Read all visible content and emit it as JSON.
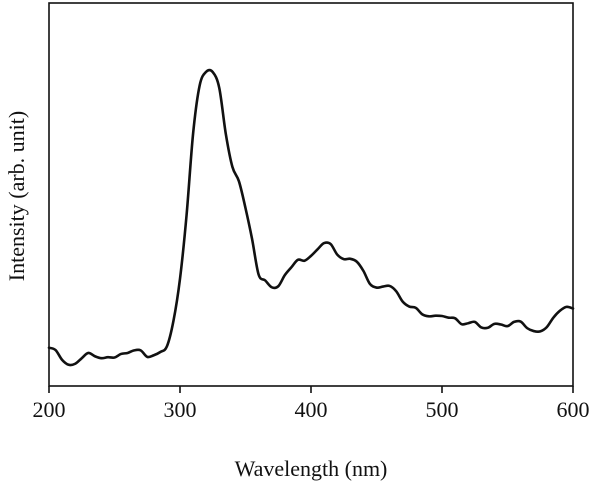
{
  "chart_data": {
    "type": "line",
    "xlabel": "Wavelength (nm)",
    "ylabel": "Intensity (arb. unit)",
    "xlim": [
      200,
      600
    ],
    "ylim": [
      0,
      1
    ],
    "x_ticks": [
      200,
      300,
      400,
      500,
      600
    ],
    "x_tick_labels": [
      "200",
      "300",
      "400",
      "500",
      "600"
    ],
    "y_ticks_labeled": false,
    "grid": false,
    "legend": "none",
    "colors": {
      "line": "#111111",
      "axis": "#111111"
    },
    "series": [
      {
        "x": [
          200,
          205,
          210,
          215,
          220,
          225,
          230,
          235,
          240,
          245,
          250,
          255,
          260,
          265,
          270,
          275,
          280,
          285,
          290,
          295,
          300,
          305,
          310,
          315,
          320,
          325,
          330,
          335,
          340,
          345,
          350,
          355,
          360,
          365,
          370,
          375,
          380,
          385,
          390,
          395,
          400,
          405,
          410,
          415,
          420,
          425,
          430,
          435,
          440,
          445,
          450,
          455,
          460,
          465,
          470,
          475,
          480,
          485,
          490,
          495,
          500,
          505,
          510,
          515,
          520,
          525,
          530,
          535,
          540,
          545,
          550,
          555,
          560,
          565,
          570,
          575,
          580,
          585,
          590,
          595,
          600
        ],
        "y": [
          0.117,
          0.11,
          0.08,
          0.065,
          0.068,
          0.085,
          0.101,
          0.091,
          0.085,
          0.088,
          0.087,
          0.098,
          0.101,
          0.109,
          0.109,
          0.089,
          0.094,
          0.104,
          0.121,
          0.199,
          0.328,
          0.522,
          0.772,
          0.919,
          0.961,
          0.96,
          0.911,
          0.77,
          0.67,
          0.626,
          0.544,
          0.45,
          0.341,
          0.323,
          0.302,
          0.305,
          0.339,
          0.363,
          0.386,
          0.383,
          0.398,
          0.418,
          0.437,
          0.434,
          0.402,
          0.388,
          0.389,
          0.38,
          0.352,
          0.312,
          0.301,
          0.304,
          0.306,
          0.29,
          0.258,
          0.243,
          0.239,
          0.219,
          0.213,
          0.215,
          0.214,
          0.209,
          0.207,
          0.189,
          0.192,
          0.196,
          0.179,
          0.178,
          0.19,
          0.188,
          0.183,
          0.196,
          0.197,
          0.177,
          0.168,
          0.167,
          0.18,
          0.209,
          0.23,
          0.242,
          0.237
        ]
      }
    ]
  }
}
